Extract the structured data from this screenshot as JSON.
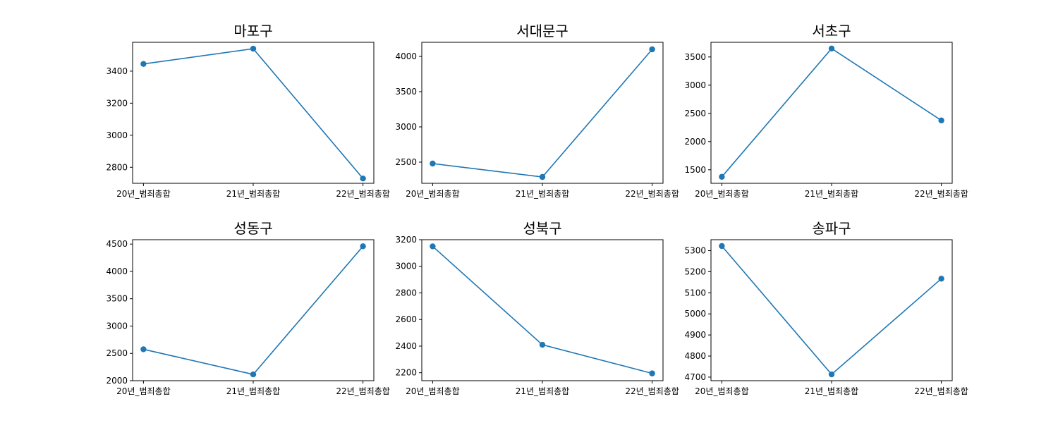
{
  "style": {
    "line_color": "#1f77b4",
    "axes_color": "#000000",
    "background": "#ffffff"
  },
  "chart_data": [
    {
      "type": "line",
      "title": "마포구",
      "categories": [
        "20년_범죄총합",
        "21년_범죄총합",
        "22년_범죄총합"
      ],
      "values": [
        3445,
        3540,
        2730
      ],
      "ylim": [
        2700,
        3580
      ],
      "yticks": [
        2800,
        3000,
        3200,
        3400
      ],
      "grid": false,
      "markers": true
    },
    {
      "type": "line",
      "title": "서대문구",
      "categories": [
        "20년_범죄총합",
        "21년_범죄총합",
        "22년_범죄총합"
      ],
      "values": [
        2480,
        2290,
        4100
      ],
      "ylim": [
        2200,
        4200
      ],
      "yticks": [
        2500,
        3000,
        3500,
        4000
      ],
      "grid": false,
      "markers": true
    },
    {
      "type": "line",
      "title": "서초구",
      "categories": [
        "20년_범죄총합",
        "21년_범죄총합",
        "22년_범죄총합"
      ],
      "values": [
        1375,
        3650,
        2375
      ],
      "ylim": [
        1260,
        3760
      ],
      "yticks": [
        1500,
        2000,
        2500,
        3000,
        3500
      ],
      "grid": false,
      "markers": true
    },
    {
      "type": "line",
      "title": "성동구",
      "categories": [
        "20년_범죄총합",
        "21년_범죄총합",
        "22년_범죄총합"
      ],
      "values": [
        2575,
        2115,
        4460
      ],
      "ylim": [
        2000,
        4580
      ],
      "yticks": [
        2000,
        2500,
        3000,
        3500,
        4000,
        4500
      ],
      "grid": false,
      "markers": true
    },
    {
      "type": "line",
      "title": "성북구",
      "categories": [
        "20년_범죄총합",
        "21년_범죄총합",
        "22년_범죄총합"
      ],
      "values": [
        3150,
        2410,
        2195
      ],
      "ylim": [
        2140,
        3200
      ],
      "yticks": [
        2200,
        2400,
        2600,
        2800,
        3000,
        3200
      ],
      "grid": false,
      "markers": true
    },
    {
      "type": "line",
      "title": "송파구",
      "categories": [
        "20년_범죄총합",
        "21년_범죄총합",
        "22년_범죄총합"
      ],
      "values": [
        5322,
        4713,
        5167
      ],
      "ylim": [
        4683,
        5352
      ],
      "yticks": [
        4700,
        4800,
        4900,
        5000,
        5100,
        5200,
        5300
      ],
      "grid": false,
      "markers": true
    }
  ]
}
